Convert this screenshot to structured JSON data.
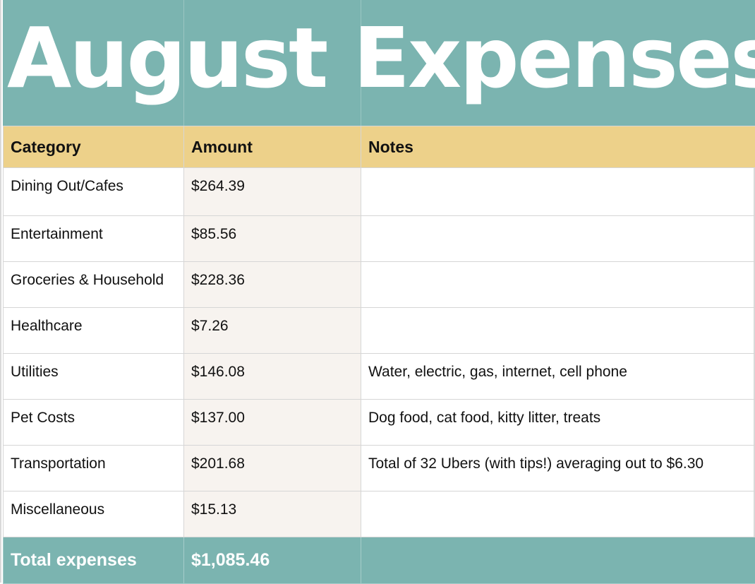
{
  "title": "August Expenses",
  "columns": {
    "category": "Category",
    "amount": "Amount",
    "notes": "Notes"
  },
  "rows": [
    {
      "category": "Dining Out/Cafes",
      "amount": "$264.39",
      "notes": ""
    },
    {
      "category": "Entertainment",
      "amount": "$85.56",
      "notes": ""
    },
    {
      "category": "Groceries & Household",
      "amount": "$228.36",
      "notes": ""
    },
    {
      "category": "Healthcare",
      "amount": "$7.26",
      "notes": ""
    },
    {
      "category": "Utilities",
      "amount": "$146.08",
      "notes": "Water, electric, gas, internet, cell phone"
    },
    {
      "category": "Pet Costs",
      "amount": "$137.00",
      "notes": "Dog food, cat food, kitty litter, treats"
    },
    {
      "category": "Transportation",
      "amount": "$201.68",
      "notes": "Total of 32 Ubers (with tips!) averaging out to $6.30"
    },
    {
      "category": "Miscellaneous",
      "amount": "$15.13",
      "notes": ""
    }
  ],
  "total": {
    "label": "Total expenses",
    "amount": "$1,085.46",
    "notes": ""
  },
  "colors": {
    "title_band": "#7bb4b0",
    "header_band": "#edd18a",
    "amount_column": "#f7f3ef",
    "total_band": "#7bb4b0"
  }
}
